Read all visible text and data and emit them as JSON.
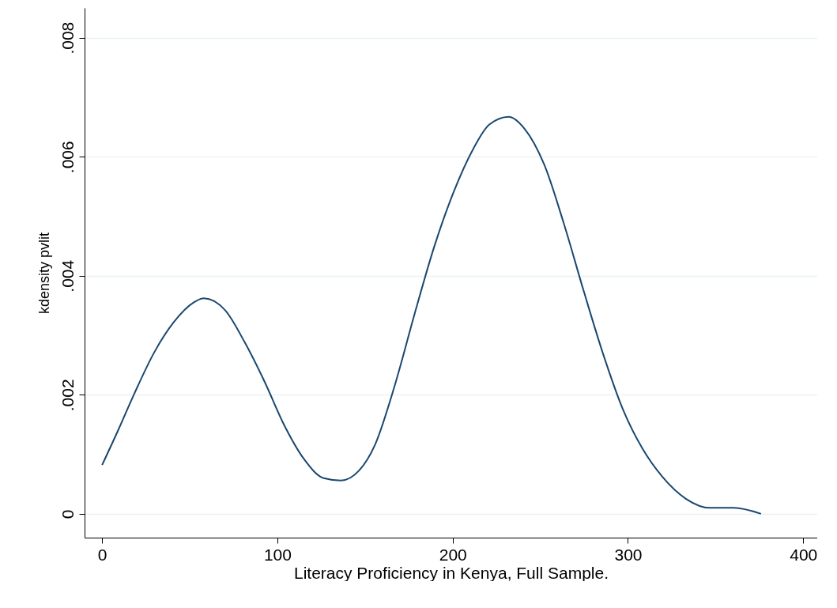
{
  "chart_data": {
    "type": "line",
    "xlabel": "Literacy Proficiency in Kenya, Full Sample.",
    "ylabel": "kdensity pvlit",
    "x": [
      0,
      9.4,
      18.4,
      29.7,
      40.9,
      52.2,
      58,
      70.2,
      81.4,
      92.7,
      103.9,
      115.2,
      126.4,
      136.3,
      146.7,
      155.7,
      166.9,
      178.2,
      189.4,
      200.6,
      211.9,
      220.9,
      232,
      241,
      252.2,
      263.4,
      274.7,
      285.9,
      297.2,
      308.4,
      319.7,
      333.2,
      346.7,
      360.2,
      375.9
    ],
    "series": [
      {
        "color": "#1a476f",
        "values": [
          0.00082,
          0.00142,
          0.00202,
          0.00271,
          0.00322,
          0.00355,
          0.00362,
          0.00342,
          0.00288,
          0.00222,
          0.00149,
          0.00092,
          0.0006,
          0.00056,
          0.00073,
          0.00116,
          0.00215,
          0.00335,
          0.00448,
          0.00541,
          0.00614,
          0.00654,
          0.00667,
          0.00647,
          0.00587,
          0.00488,
          0.00375,
          0.00268,
          0.00175,
          0.00109,
          0.00062,
          0.00025,
          0.0001,
          0.0001,
          0
        ]
      }
    ],
    "xlim": [
      -10,
      408
    ],
    "xticks": [
      0,
      100,
      200,
      300,
      400
    ],
    "ylim": [
      -0.0004,
      0.0085
    ],
    "yticks": [
      0,
      {
        "value": 0.002,
        "label": ".002"
      },
      {
        "value": 0.004,
        "label": ".004"
      },
      {
        "value": 0.006,
        "label": ".006"
      },
      {
        "value": 0.008,
        "label": ".008"
      }
    ],
    "grid": "y",
    "line_style": "solid",
    "marker": "none"
  }
}
